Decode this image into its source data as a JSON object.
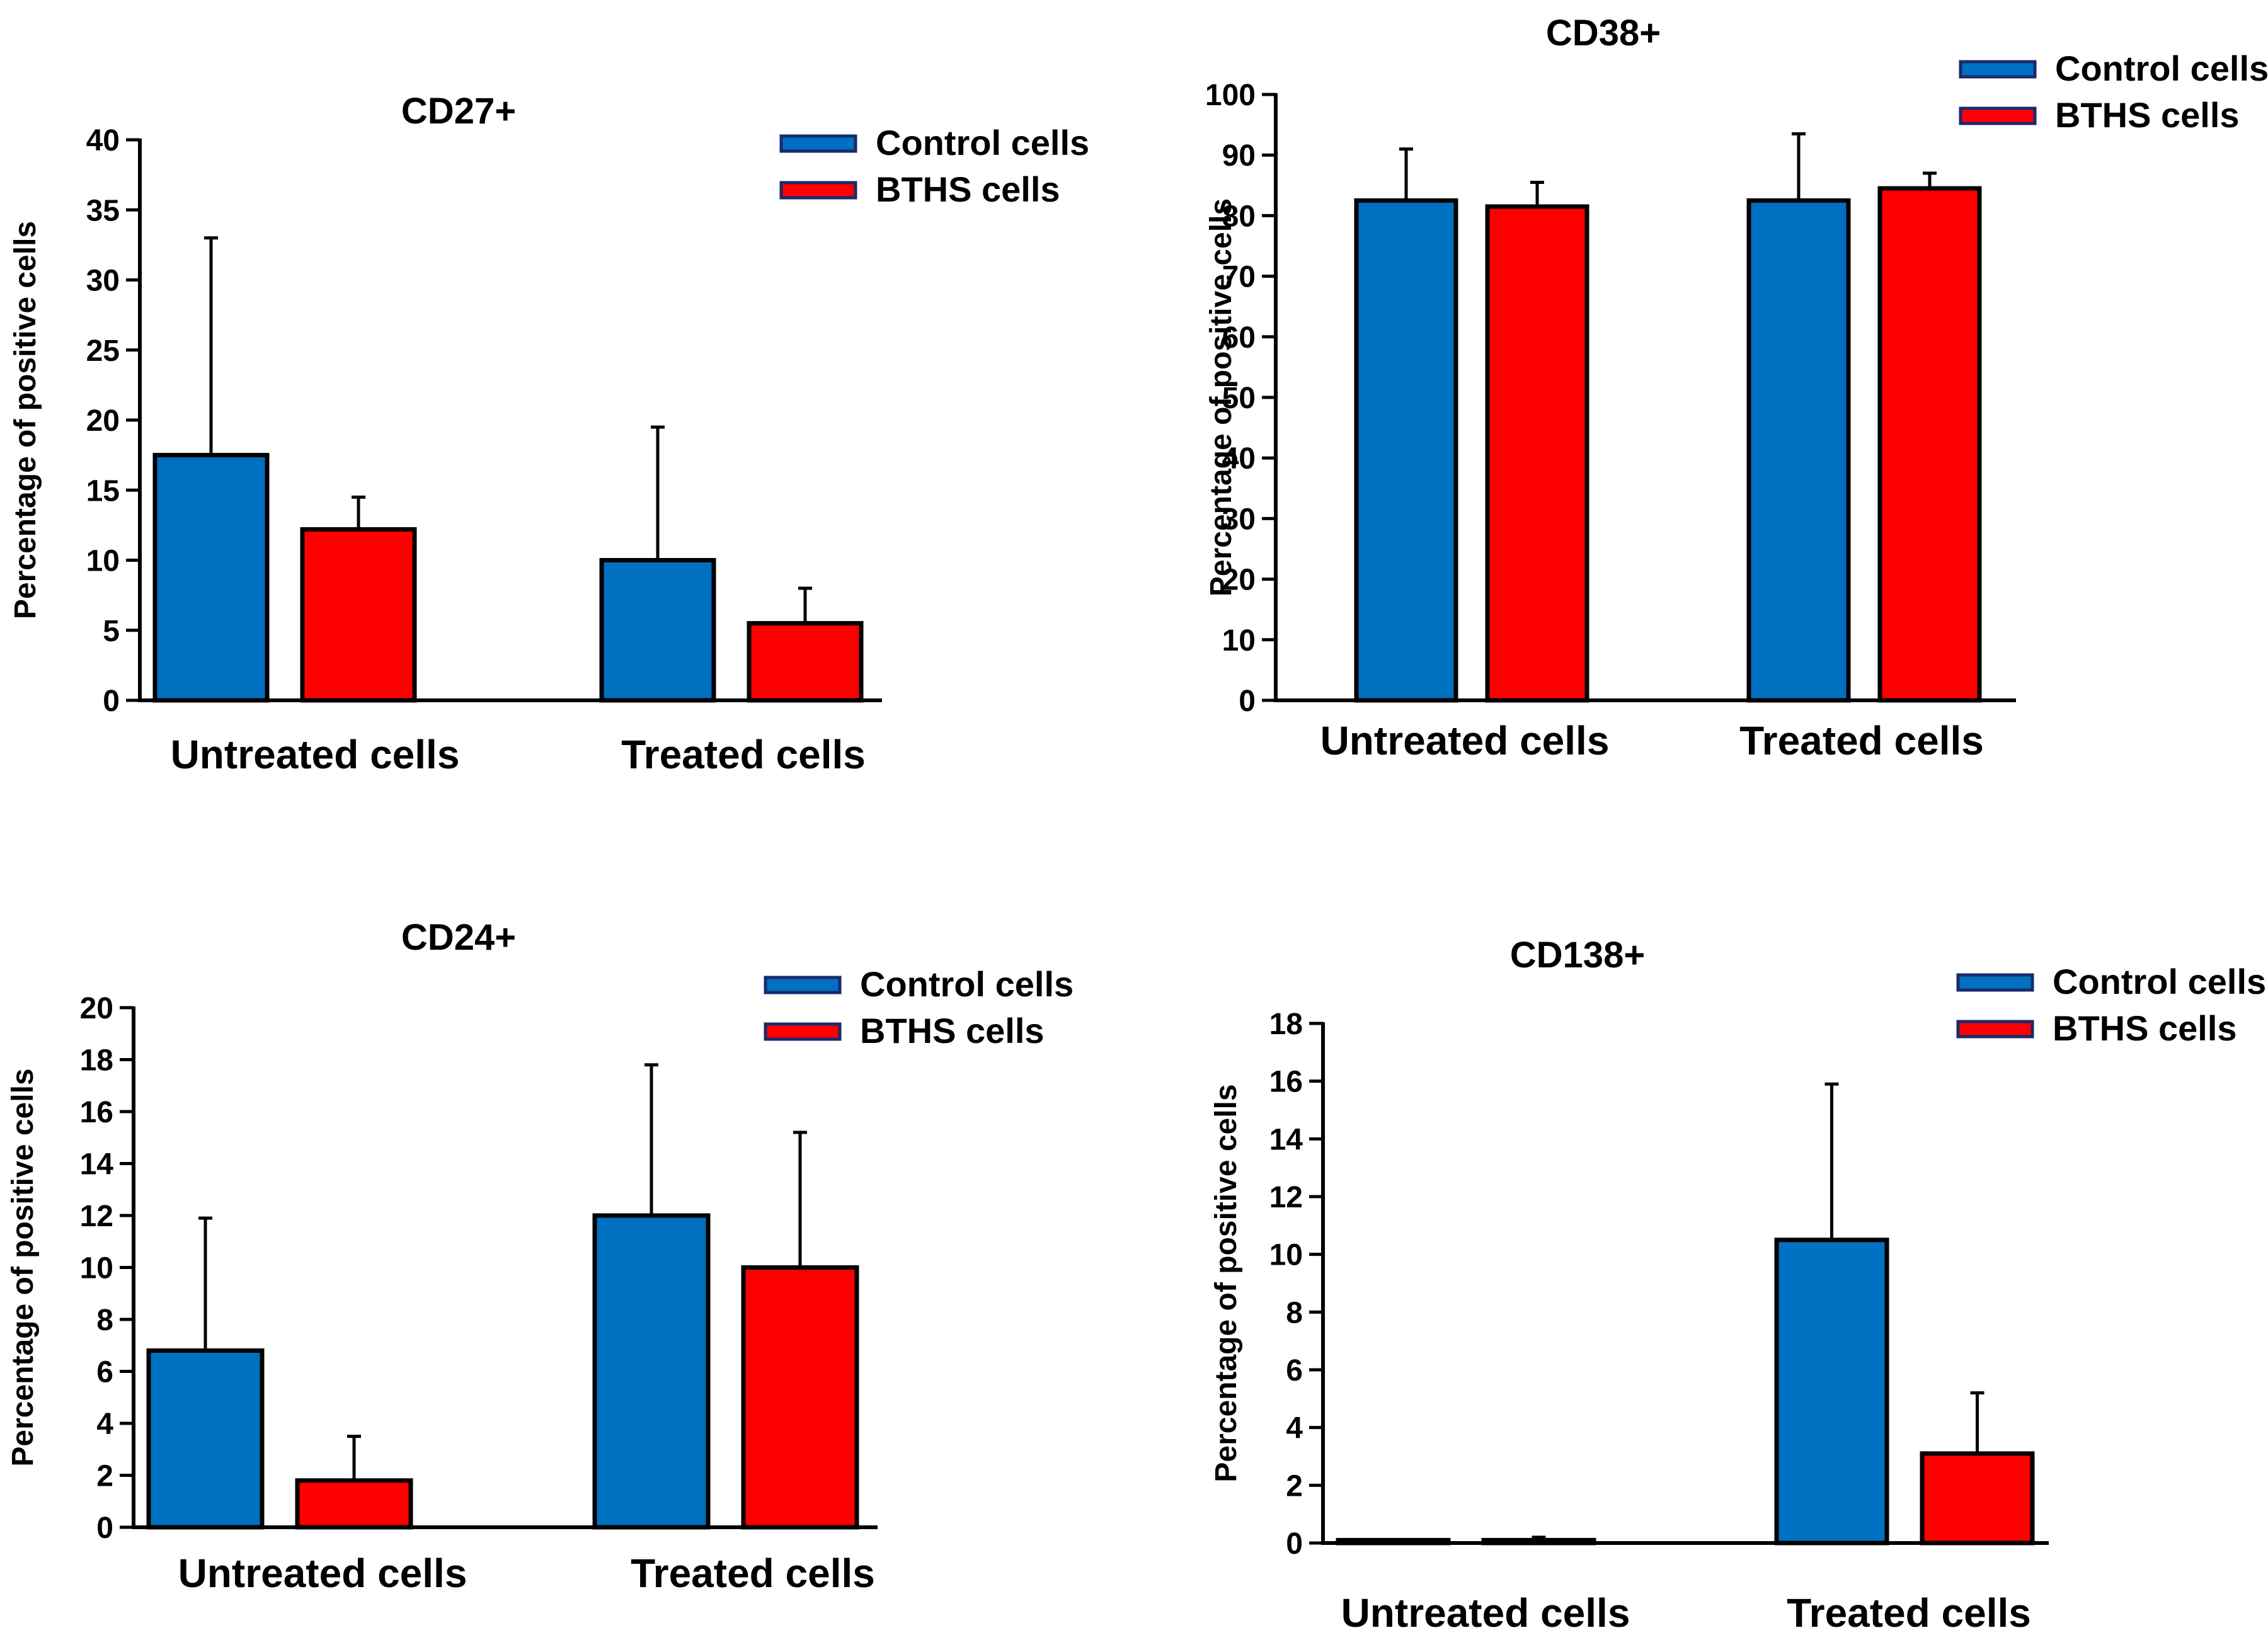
{
  "colors": {
    "control": "#0070C0",
    "bths": "#FF0000",
    "axis": "#000000"
  },
  "chart_data": [
    {
      "type": "bar",
      "title": "CD27+",
      "ylabel": "Percentage of positive cells",
      "xlabel": "",
      "categories": [
        "Untreated cells",
        "Treated cells"
      ],
      "ylim": [
        0,
        40
      ],
      "yticks": [
        0,
        5,
        10,
        15,
        20,
        25,
        30,
        35,
        40
      ],
      "legend": "top-right",
      "grid": false,
      "series": [
        {
          "name": "Control cells",
          "values": [
            17.5,
            10
          ],
          "errors": [
            15.5,
            9.5
          ]
        },
        {
          "name": "BTHS cells",
          "values": [
            12.2,
            5.5
          ],
          "errors": [
            2.3,
            2.5
          ]
        }
      ]
    },
    {
      "type": "bar",
      "title": "CD38+",
      "ylabel": "Percentage of positive cells",
      "xlabel": "",
      "categories": [
        "Untreated cells",
        "Treated cells"
      ],
      "ylim": [
        0,
        100
      ],
      "yticks": [
        0,
        10,
        20,
        30,
        40,
        50,
        60,
        70,
        80,
        90,
        100
      ],
      "legend": "top-right",
      "grid": false,
      "series": [
        {
          "name": "Control cells",
          "values": [
            82.5,
            82.5
          ],
          "errors": [
            8.5,
            11
          ]
        },
        {
          "name": "BTHS cells",
          "values": [
            81.5,
            84.5
          ],
          "errors": [
            4,
            2.5
          ]
        }
      ]
    },
    {
      "type": "bar",
      "title": "CD24+",
      "ylabel": "Percentage of positive cells",
      "xlabel": "",
      "categories": [
        "Untreated cells",
        "Treated cells"
      ],
      "ylim": [
        0,
        20
      ],
      "yticks": [
        0,
        2,
        4,
        6,
        8,
        10,
        12,
        14,
        16,
        18,
        20
      ],
      "legend": "top-right",
      "grid": false,
      "series": [
        {
          "name": "Control cells",
          "values": [
            6.8,
            12
          ],
          "errors": [
            5.1,
            5.8
          ]
        },
        {
          "name": "BTHS cells",
          "values": [
            1.8,
            10
          ],
          "errors": [
            1.7,
            5.2
          ]
        }
      ]
    },
    {
      "type": "bar",
      "title": "CD138+",
      "ylabel": "Percentage of positive cells",
      "xlabel": "",
      "categories": [
        "Untreated cells",
        "Treated cells"
      ],
      "ylim": [
        0,
        18
      ],
      "yticks": [
        0,
        2,
        4,
        6,
        8,
        10,
        12,
        14,
        16,
        18
      ],
      "legend": "top-right",
      "grid": false,
      "series": [
        {
          "name": "Control cells",
          "values": [
            0.1,
            10.5
          ],
          "errors": [
            0,
            5.4
          ]
        },
        {
          "name": "BTHS cells",
          "values": [
            0.1,
            3.1
          ],
          "errors": [
            0.1,
            2.1
          ]
        }
      ]
    }
  ]
}
